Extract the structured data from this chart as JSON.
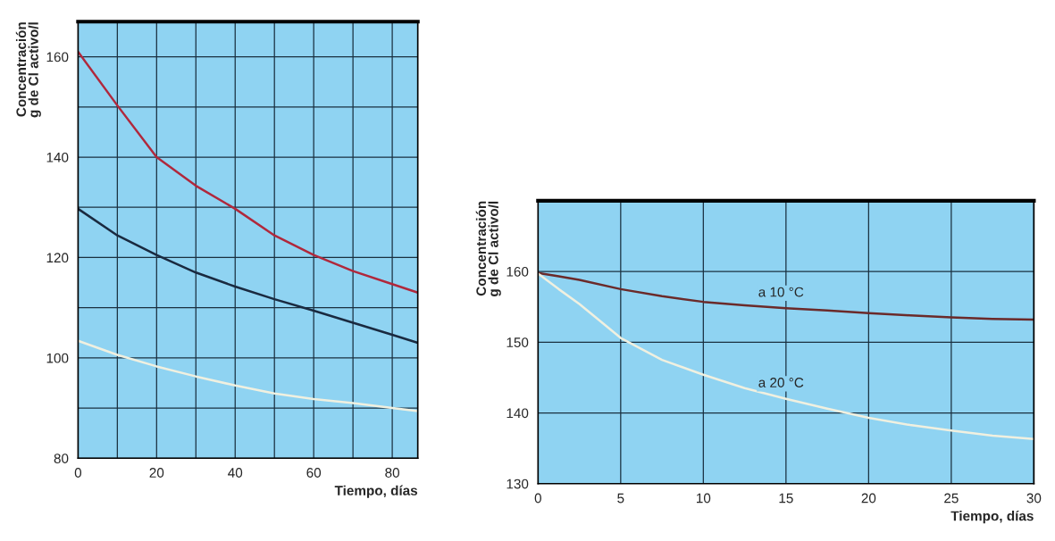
{
  "chart_data": [
    {
      "type": "line",
      "xlabel": "Tiempo, días",
      "ylabel": "Concentración\ng de Cl activo/l",
      "xlim": [
        0,
        86.5
      ],
      "ylim": [
        80,
        167
      ],
      "xticks": [
        0,
        {
          "value": 10,
          "label": null
        },
        20,
        {
          "value": 30,
          "label": null
        },
        40,
        {
          "value": 50,
          "label": null
        },
        60,
        {
          "value": 70,
          "label": null
        },
        80
      ],
      "yticks": [
        80,
        {
          "value": 90,
          "label": null
        },
        100,
        {
          "value": 110,
          "label": null
        },
        120,
        {
          "value": 130,
          "label": null
        },
        140,
        {
          "value": 150,
          "label": null
        },
        160
      ],
      "grid": true,
      "marker": "none",
      "line_style": "solid",
      "x": [
        0,
        10,
        20,
        30,
        40,
        50,
        60,
        70,
        80,
        86.5
      ],
      "series": [
        {
          "color": "#b0283c",
          "values": [
            161,
            150.3,
            140,
            134.3,
            129.7,
            124.4,
            120.5,
            117.3,
            114.7,
            113
          ]
        },
        {
          "color": "#1a2a40",
          "values": [
            129.7,
            124.4,
            120.5,
            117,
            114.2,
            111.7,
            109.4,
            107,
            104.6,
            103
          ]
        },
        {
          "color": "#f0f0e0",
          "values": [
            103.4,
            100.6,
            98.3,
            96.3,
            94.5,
            92.9,
            91.8,
            91,
            90,
            89.4
          ]
        }
      ]
    },
    {
      "type": "line",
      "xlabel": "Tiempo, días",
      "ylabel": "Concentración\ng de Cl activo/l",
      "xlim": [
        0,
        30
      ],
      "ylim": [
        130,
        170
      ],
      "xticks": [
        0,
        5,
        10,
        15,
        20,
        25,
        30
      ],
      "yticks": [
        130,
        140,
        150,
        160
      ],
      "grid": true,
      "marker": "none",
      "line_style": "solid",
      "x": [
        0,
        1.25,
        2.5,
        5,
        7.5,
        10,
        12.5,
        15,
        17.5,
        20,
        22.5,
        25,
        27.5,
        30
      ],
      "series": [
        {
          "color": "#6b2a2a",
          "values": [
            159.8,
            159.3,
            158.8,
            157.5,
            156.5,
            155.7,
            155.2,
            154.8,
            154.5,
            154.1,
            153.8,
            153.5,
            153.3,
            153.2
          ]
        },
        {
          "color": "#f0f0e0",
          "values": [
            159.7,
            157.5,
            155.4,
            150.6,
            147.5,
            145.4,
            143.5,
            142,
            140.6,
            139.3,
            138.3,
            137.5,
            136.8,
            136.3
          ]
        }
      ],
      "annotations": [
        {
          "text": "a 10 °C",
          "x": 15,
          "y": 154.8
        },
        {
          "text": "a 20 °C",
          "x": 15,
          "y": 142
        }
      ]
    }
  ]
}
